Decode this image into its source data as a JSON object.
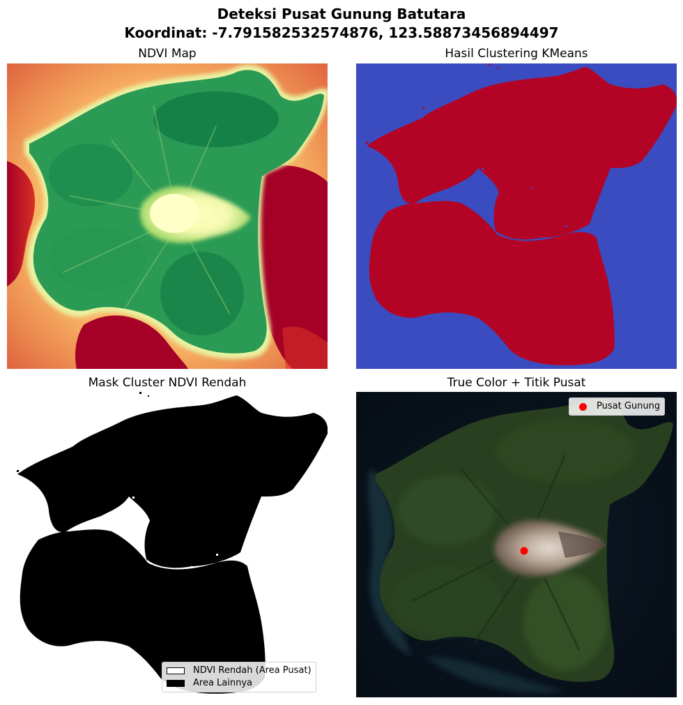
{
  "title": {
    "line1": "Deteksi Pusat Gunung Batutara",
    "line2": "Koordinat: -7.791582532574876, 123.58873456894497"
  },
  "panels": {
    "ndvi": {
      "title": "NDVI Map"
    },
    "kmeans": {
      "title": "Hasil Clustering KMeans"
    },
    "mask": {
      "title": "Mask Cluster NDVI Rendah",
      "legend": [
        {
          "label": "NDVI Rendah (Area Pusat)"
        },
        {
          "label": "Area Lainnya"
        }
      ]
    },
    "truecolor": {
      "title": "True Color + Titik Pusat",
      "legend": [
        {
          "label": "Pusat Gunung"
        }
      ]
    }
  },
  "colors": {
    "ndvi_high": "#1a9850",
    "ndvi_mid": "#fee08b",
    "ndvi_low": "#a50026",
    "cluster_a": "#3b4cc0",
    "cluster_b": "#b40426",
    "marker": "#ff0000"
  }
}
